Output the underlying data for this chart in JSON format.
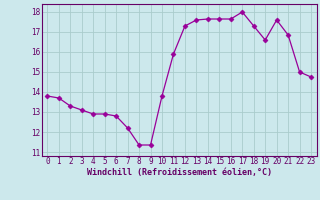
{
  "x": [
    0,
    1,
    2,
    3,
    4,
    5,
    6,
    7,
    8,
    9,
    10,
    11,
    12,
    13,
    14,
    15,
    16,
    17,
    18,
    19,
    20,
    21,
    22,
    23
  ],
  "y": [
    13.8,
    13.7,
    13.3,
    13.1,
    12.9,
    12.9,
    12.8,
    12.2,
    11.35,
    11.35,
    13.8,
    15.9,
    17.3,
    17.6,
    17.65,
    17.65,
    17.65,
    18.0,
    17.3,
    16.6,
    17.6,
    16.85,
    15.0,
    14.75
  ],
  "line_color": "#990099",
  "marker": "D",
  "marker_size": 2.5,
  "bg_color": "#cce8ec",
  "grid_color": "#aacccc",
  "xlabel": "Windchill (Refroidissement éolien,°C)",
  "xlabel_color": "#660066",
  "tick_color": "#660066",
  "xlim": [
    -0.5,
    23.5
  ],
  "ylim": [
    10.8,
    18.4
  ],
  "yticks": [
    11,
    12,
    13,
    14,
    15,
    16,
    17,
    18
  ],
  "xticks": [
    0,
    1,
    2,
    3,
    4,
    5,
    6,
    7,
    8,
    9,
    10,
    11,
    12,
    13,
    14,
    15,
    16,
    17,
    18,
    19,
    20,
    21,
    22,
    23
  ],
  "tick_fontsize": 5.5,
  "xlabel_fontsize": 6.0
}
